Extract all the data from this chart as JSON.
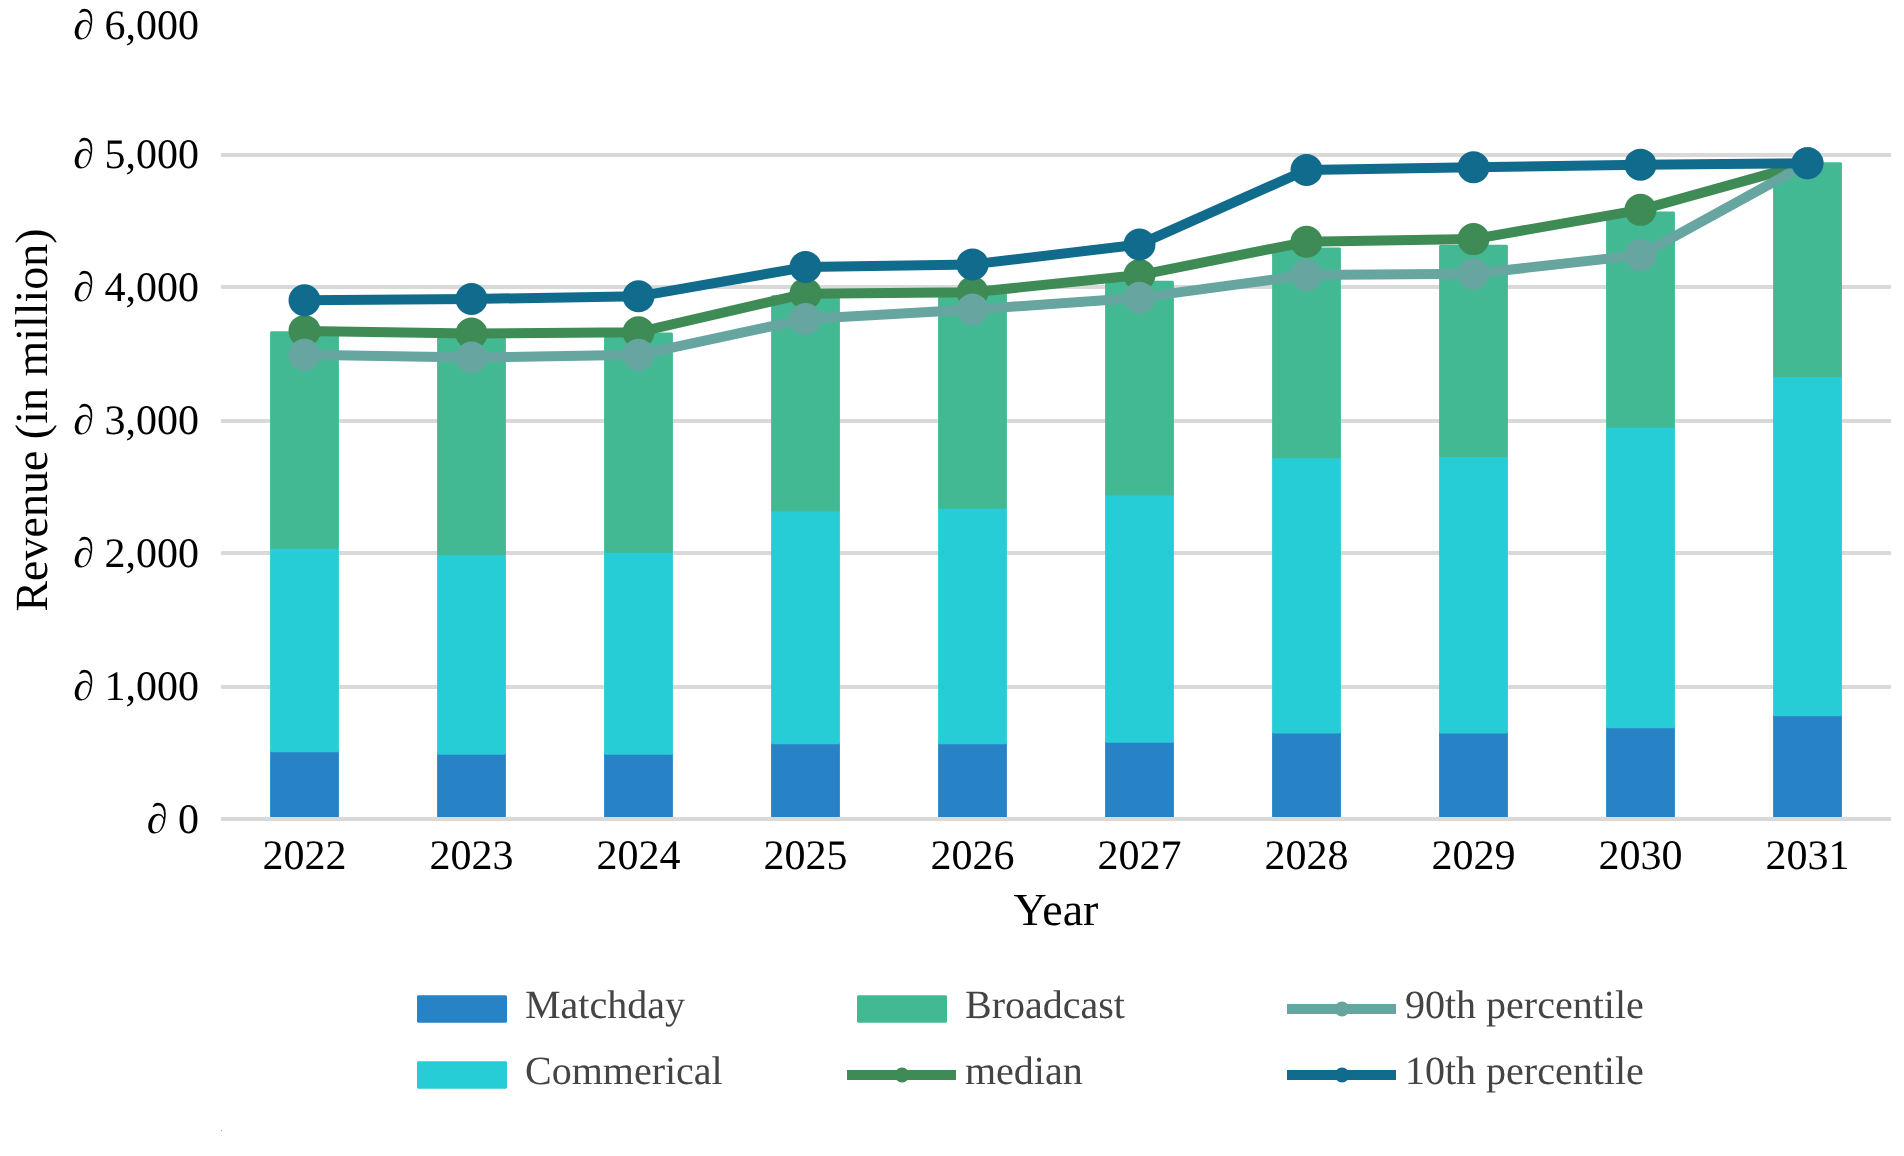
{
  "chart_data": {
    "type": "bar",
    "stacked": true,
    "xlabel": "Year",
    "ylabel": "Revenue (in million)",
    "categories": [
      "2022",
      "2023",
      "2024",
      "2025",
      "2026",
      "2027",
      "2028",
      "2029",
      "2030",
      "2031"
    ],
    "series": [
      {
        "name": "Matchday",
        "color": "#2882c6",
        "values": [
          510,
          490,
          490,
          570,
          570,
          580,
          650,
          650,
          690,
          780
        ]
      },
      {
        "name": "Commerical",
        "color": "#27cdd6",
        "values": [
          1530,
          1500,
          1520,
          1750,
          1770,
          1860,
          2070,
          2080,
          2260,
          2550
        ]
      },
      {
        "name": "Broadcast",
        "color": "#43b993",
        "values": [
          1620,
          1650,
          1640,
          1610,
          1620,
          1600,
          1570,
          1580,
          1610,
          1600
        ]
      },
      {
        "name": "median",
        "type": "line",
        "color": "#3e8b55",
        "values": [
          3670,
          3650,
          3660,
          3950,
          3960,
          4090,
          4340,
          4360,
          4580,
          4930
        ]
      },
      {
        "name": "90th percentile",
        "type": "line",
        "color": "#66a5a0",
        "values": [
          3490,
          3470,
          3490,
          3760,
          3830,
          3920,
          4090,
          4100,
          4240,
          4930
        ]
      },
      {
        "name": "10th percentile",
        "type": "line",
        "color": "#116b8c",
        "values": [
          3900,
          3910,
          3930,
          4150,
          4170,
          4320,
          4880,
          4900,
          4920,
          4930
        ]
      }
    ],
    "ylim": [
      0,
      6000
    ],
    "yticks": [
      {
        "value": 0,
        "label": "∂ 0"
      },
      {
        "value": 1000,
        "label": "∂ 1,000"
      },
      {
        "value": 2000,
        "label": "∂ 2,000"
      },
      {
        "value": 3000,
        "label": "∂ 3,000"
      },
      {
        "value": 4000,
        "label": "∂ 4,000"
      },
      {
        "value": 5000,
        "label": "∂ 5,000"
      },
      {
        "value": 6000,
        "label": "∂ 6,000"
      }
    ],
    "grid": "y",
    "legend": "bottom",
    "marker": "circle",
    "line_style": "solid"
  }
}
